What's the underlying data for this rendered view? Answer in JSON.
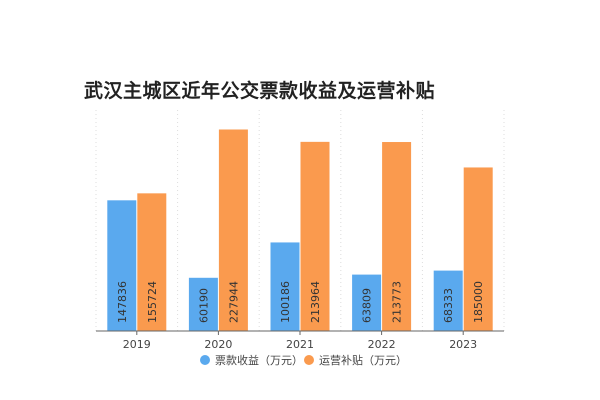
{
  "chart_data": {
    "type": "bar",
    "title": "武汉主城区近年公交票款收益及运营补贴",
    "categories": [
      "2019",
      "2020",
      "2021",
      "2022",
      "2023"
    ],
    "series": [
      {
        "name": "票款收益（万元）",
        "color": "#5aa9ee",
        "values": [
          147836,
          60190,
          100186,
          63809,
          68333
        ]
      },
      {
        "name": "运营补贴（万元）",
        "color": "#fa9a4e",
        "values": [
          155724,
          227944,
          213964,
          213773,
          185000
        ]
      }
    ],
    "ylim": [
      0,
      250000
    ],
    "grid": "vertical dotted lines between categories",
    "legend": "bottom",
    "data_labels": "inside bars, rotated vertical"
  }
}
